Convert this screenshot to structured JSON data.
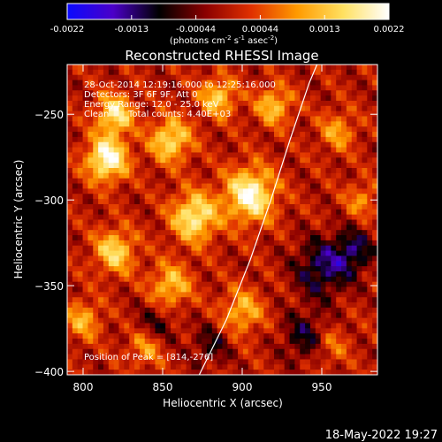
{
  "chart_data": {
    "type": "heatmap",
    "title": "Reconstructed RHESSI Image",
    "xlabel": "Heliocentric X (arcsec)",
    "ylabel": "Heliocentric Y (arcsec)",
    "xlim": [
      790,
      985
    ],
    "ylim": [
      -402,
      -221
    ],
    "x_ticks": [
      800,
      850,
      900,
      950
    ],
    "y_ticks": [
      -250,
      -300,
      -350,
      -400
    ],
    "colorbar": {
      "min": -0.0022,
      "max": 0.0022,
      "ticks": [
        "-0.0022",
        "-0.0013",
        "-0.00044",
        "0.00044",
        "0.0013",
        "0.0022"
      ],
      "unit_label": "(photons cm",
      "unit_sup1": "-2",
      "unit_mid": " s",
      "unit_sup2": "-1",
      "unit_end": " asec",
      "unit_sup3": "-2",
      "unit_close": ")",
      "colors": [
        "#0a0aff",
        "#4b00c8",
        "#000000",
        "#8a0000",
        "#e03000",
        "#ff9a00",
        "#ffe060",
        "#ffffff"
      ]
    },
    "annotations": [
      "28-Oct-2014 12:19:16.000 to 12:25:16.000",
      "Detectors: 3F 6F 9F, Att 0",
      "Energy Range: 12.0 - 25.0 keV",
      "Clean",
      "Total counts: 4.40E+03"
    ],
    "peak_label": "Position of Peak = [814,-276]",
    "peak": [
      814,
      -276
    ],
    "limb_curve": [
      [
        873,
        -402
      ],
      [
        890,
        -370
      ],
      [
        905,
        -335
      ],
      [
        918,
        -300
      ],
      [
        930,
        -265
      ],
      [
        942,
        -232
      ],
      [
        947,
        -221
      ]
    ],
    "hotspots": [
      {
        "x": 815,
        "y": -276,
        "v": 1.0,
        "s": 9
      },
      {
        "x": 905,
        "y": -297,
        "v": 0.95,
        "s": 11
      },
      {
        "x": 820,
        "y": -250,
        "v": 0.8,
        "s": 8
      },
      {
        "x": 855,
        "y": -265,
        "v": 0.75,
        "s": 9
      },
      {
        "x": 870,
        "y": -310,
        "v": 0.85,
        "s": 10
      },
      {
        "x": 820,
        "y": -330,
        "v": 0.7,
        "s": 9
      },
      {
        "x": 855,
        "y": -350,
        "v": 0.6,
        "s": 9
      },
      {
        "x": 885,
        "y": -240,
        "v": 0.65,
        "s": 8
      },
      {
        "x": 920,
        "y": -245,
        "v": 0.6,
        "s": 8
      },
      {
        "x": 840,
        "y": -385,
        "v": 0.55,
        "s": 8
      },
      {
        "x": 900,
        "y": -365,
        "v": 0.55,
        "s": 9
      },
      {
        "x": 960,
        "y": -260,
        "v": 0.45,
        "s": 8
      },
      {
        "x": 975,
        "y": -300,
        "v": 0.4,
        "s": 7
      },
      {
        "x": 955,
        "y": -385,
        "v": 0.35,
        "s": 8
      },
      {
        "x": 800,
        "y": -370,
        "v": 0.5,
        "s": 8
      },
      {
        "x": 950,
        "y": -340,
        "v": -0.55,
        "s": 12
      },
      {
        "x": 940,
        "y": -380,
        "v": -0.45,
        "s": 10
      },
      {
        "x": 970,
        "y": -330,
        "v": -0.5,
        "s": 9
      },
      {
        "x": 845,
        "y": -375,
        "v": -0.4,
        "s": 9
      },
      {
        "x": 880,
        "y": -385,
        "v": -0.35,
        "s": 8
      }
    ],
    "grid": false
  },
  "footer": {
    "date": "18-May-2022 19:27"
  }
}
